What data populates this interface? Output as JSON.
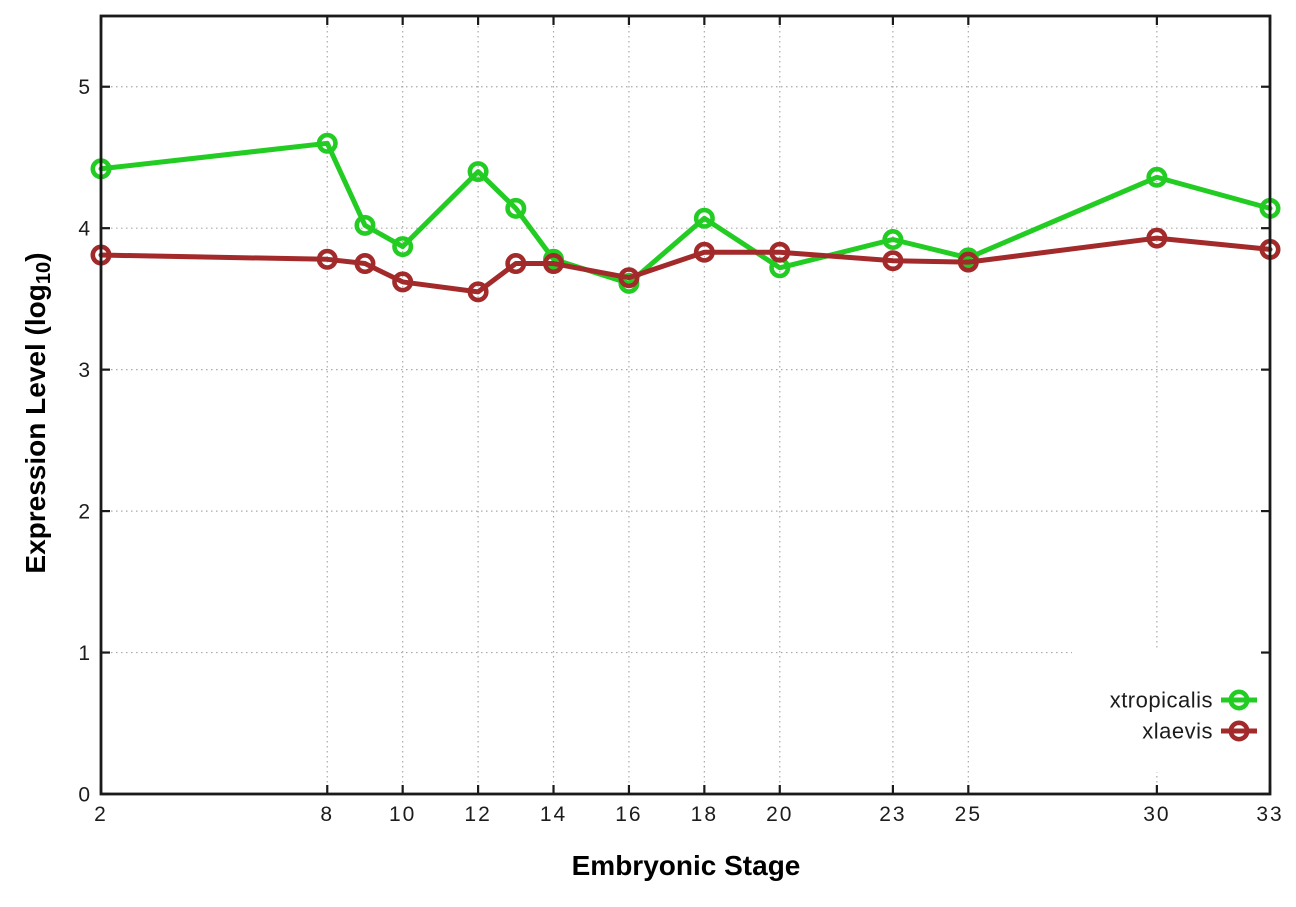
{
  "figure": {
    "background": "#ffffff",
    "xlabel": "Embryonic Stage",
    "ylabel_main": "Expression Level (log",
    "ylabel_sub": "10",
    "ylabel_suffix": ")"
  },
  "chart_data": {
    "type": "line",
    "title": "",
    "xlabel": "Embryonic Stage",
    "ylabel": "Expression Level (log10)",
    "x": [
      2,
      8,
      9,
      10,
      12,
      13,
      14,
      16,
      18,
      20,
      23,
      25,
      30,
      33
    ],
    "x_ticks": [
      2,
      8,
      10,
      12,
      14,
      16,
      18,
      20,
      23,
      25,
      30,
      33
    ],
    "y_ticks": [
      0,
      1,
      2,
      3,
      4,
      5
    ],
    "xlim": [
      2,
      33
    ],
    "ylim": [
      0,
      5.5
    ],
    "grid": true,
    "legend_position": "inside-bottom-right",
    "series": [
      {
        "name": "xtropicalis",
        "color": "#22cc22",
        "marker": "open-circle",
        "values": [
          4.42,
          4.6,
          4.02,
          3.87,
          4.4,
          4.14,
          3.78,
          3.61,
          4.07,
          3.72,
          3.92,
          3.79,
          4.36,
          4.14
        ]
      },
      {
        "name": "xlaevis",
        "color": "#a32a2a",
        "marker": "open-circle",
        "values": [
          3.81,
          3.78,
          3.75,
          3.62,
          3.55,
          3.75,
          3.75,
          3.65,
          3.83,
          3.83,
          3.77,
          3.76,
          3.93,
          3.85
        ]
      }
    ],
    "colors": {
      "axis": "#1a1a1a",
      "grid": "#aaaaaa",
      "tick_text": "#1c1c1c"
    }
  }
}
